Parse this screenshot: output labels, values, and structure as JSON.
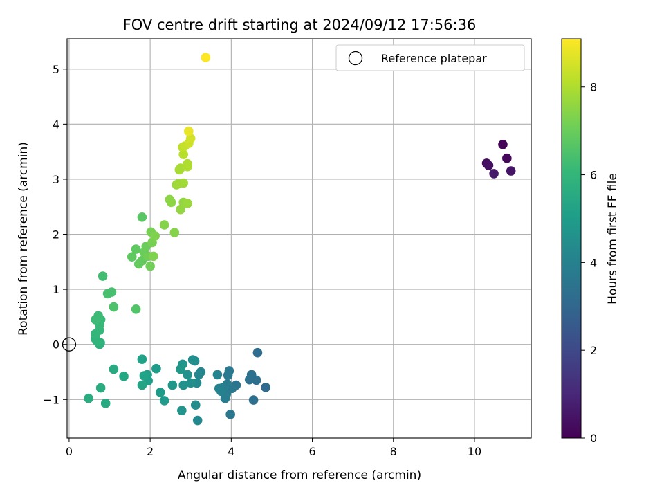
{
  "chart_data": {
    "type": "scatter",
    "title": "FOV centre drift starting at 2024/09/12 17:56:36",
    "xlabel": "Angular distance from reference (arcmin)",
    "ylabel": "Rotation from reference (arcmin)",
    "xlim": [
      -0.05,
      11.4
    ],
    "ylim": [
      -1.7,
      5.55
    ],
    "xticks": [
      0,
      2,
      4,
      6,
      8,
      10
    ],
    "yticks": [
      -1,
      0,
      1,
      2,
      3,
      4,
      5
    ],
    "grid": true,
    "legend": {
      "position": "top-right",
      "entries": [
        {
          "label": "Reference platepar",
          "marker": "open-circle"
        }
      ]
    },
    "reference_point": {
      "x": 0,
      "y": 0
    },
    "colorbar": {
      "label": "Hours from first FF file",
      "colormap": "viridis",
      "range": [
        0,
        9.1
      ],
      "ticks": [
        0,
        2,
        4,
        6,
        8
      ],
      "colors": [
        "#440154",
        "#482878",
        "#3e4a89",
        "#31688e",
        "#26828e",
        "#1f9e89",
        "#35b779",
        "#6ece58",
        "#b5de2b",
        "#fde725"
      ]
    },
    "points": [
      {
        "x": 10.7,
        "y": 3.63,
        "h": 0.1
      },
      {
        "x": 10.8,
        "y": 3.38,
        "h": 0.2
      },
      {
        "x": 10.3,
        "y": 3.29,
        "h": 0.3
      },
      {
        "x": 10.35,
        "y": 3.25,
        "h": 0.4
      },
      {
        "x": 10.9,
        "y": 3.15,
        "h": 0.5
      },
      {
        "x": 10.48,
        "y": 3.1,
        "h": 0.6
      },
      {
        "x": 4.85,
        "y": -0.78,
        "h": 3.1
      },
      {
        "x": 4.65,
        "y": -0.15,
        "h": 3.2
      },
      {
        "x": 4.62,
        "y": -0.65,
        "h": 3.3
      },
      {
        "x": 4.55,
        "y": -1.01,
        "h": 3.3
      },
      {
        "x": 4.5,
        "y": -0.55,
        "h": 3.4
      },
      {
        "x": 4.45,
        "y": -0.64,
        "h": 3.4
      },
      {
        "x": 4.12,
        "y": -0.74,
        "h": 3.5
      },
      {
        "x": 4.02,
        "y": -0.8,
        "h": 3.6
      },
      {
        "x": 3.98,
        "y": -1.27,
        "h": 3.6
      },
      {
        "x": 3.95,
        "y": -0.48,
        "h": 3.7
      },
      {
        "x": 3.92,
        "y": -0.56,
        "h": 3.7
      },
      {
        "x": 3.9,
        "y": -0.72,
        "h": 3.8
      },
      {
        "x": 3.88,
        "y": -0.9,
        "h": 3.8
      },
      {
        "x": 3.85,
        "y": -0.98,
        "h": 3.9
      },
      {
        "x": 3.8,
        "y": -0.78,
        "h": 3.9
      },
      {
        "x": 3.75,
        "y": -0.85,
        "h": 4.0
      },
      {
        "x": 3.7,
        "y": -0.8,
        "h": 4.0
      },
      {
        "x": 3.66,
        "y": -0.55,
        "h": 4.1
      },
      {
        "x": 3.25,
        "y": -0.5,
        "h": 4.2
      },
      {
        "x": 3.2,
        "y": -0.55,
        "h": 4.2
      },
      {
        "x": 3.17,
        "y": -1.38,
        "h": 4.3
      },
      {
        "x": 3.15,
        "y": -0.7,
        "h": 4.3
      },
      {
        "x": 3.12,
        "y": -1.1,
        "h": 4.4
      },
      {
        "x": 3.1,
        "y": -0.3,
        "h": 4.4
      },
      {
        "x": 3.05,
        "y": -0.28,
        "h": 4.5
      },
      {
        "x": 3.0,
        "y": -0.7,
        "h": 4.5
      },
      {
        "x": 2.92,
        "y": -0.55,
        "h": 4.6
      },
      {
        "x": 2.82,
        "y": -0.74,
        "h": 4.6
      },
      {
        "x": 2.8,
        "y": -0.36,
        "h": 4.7
      },
      {
        "x": 2.78,
        "y": -1.2,
        "h": 4.7
      },
      {
        "x": 2.75,
        "y": -0.45,
        "h": 4.8
      },
      {
        "x": 2.55,
        "y": -0.74,
        "h": 4.8
      },
      {
        "x": 2.35,
        "y": -1.02,
        "h": 4.9
      },
      {
        "x": 2.25,
        "y": -0.87,
        "h": 5.0
      },
      {
        "x": 2.15,
        "y": -0.44,
        "h": 5.0
      },
      {
        "x": 1.95,
        "y": -0.66,
        "h": 5.1
      },
      {
        "x": 1.93,
        "y": -0.55,
        "h": 5.1
      },
      {
        "x": 1.85,
        "y": -0.57,
        "h": 5.2
      },
      {
        "x": 1.8,
        "y": -0.27,
        "h": 5.2
      },
      {
        "x": 1.8,
        "y": -0.74,
        "h": 5.3
      },
      {
        "x": 1.35,
        "y": -0.58,
        "h": 5.4
      },
      {
        "x": 1.1,
        "y": -0.45,
        "h": 5.5
      },
      {
        "x": 0.9,
        "y": -1.07,
        "h": 5.5
      },
      {
        "x": 0.78,
        "y": -0.79,
        "h": 5.6
      },
      {
        "x": 0.48,
        "y": -0.98,
        "h": 5.6
      },
      {
        "x": 0.77,
        "y": 0.03,
        "h": 5.8
      },
      {
        "x": 0.75,
        "y": 0.0,
        "h": 5.8
      },
      {
        "x": 0.7,
        "y": 0.05,
        "h": 5.9
      },
      {
        "x": 0.65,
        "y": 0.1,
        "h": 5.9
      },
      {
        "x": 0.65,
        "y": 0.19,
        "h": 6.0
      },
      {
        "x": 0.75,
        "y": 0.26,
        "h": 6.0
      },
      {
        "x": 0.75,
        "y": 0.36,
        "h": 6.1
      },
      {
        "x": 0.78,
        "y": 0.45,
        "h": 6.1
      },
      {
        "x": 0.72,
        "y": 0.52,
        "h": 6.2
      },
      {
        "x": 0.65,
        "y": 0.45,
        "h": 6.2
      },
      {
        "x": 0.83,
        "y": 1.24,
        "h": 6.3
      },
      {
        "x": 0.95,
        "y": 0.92,
        "h": 6.4
      },
      {
        "x": 1.05,
        "y": 0.95,
        "h": 6.4
      },
      {
        "x": 1.1,
        "y": 0.68,
        "h": 6.5
      },
      {
        "x": 1.65,
        "y": 0.64,
        "h": 6.6
      },
      {
        "x": 1.8,
        "y": 2.31,
        "h": 6.7
      },
      {
        "x": 1.55,
        "y": 1.59,
        "h": 6.8
      },
      {
        "x": 1.65,
        "y": 1.73,
        "h": 6.8
      },
      {
        "x": 1.72,
        "y": 1.46,
        "h": 6.9
      },
      {
        "x": 1.8,
        "y": 1.52,
        "h": 6.9
      },
      {
        "x": 1.85,
        "y": 1.67,
        "h": 7.0
      },
      {
        "x": 1.9,
        "y": 1.78,
        "h": 7.0
      },
      {
        "x": 1.95,
        "y": 1.6,
        "h": 7.1
      },
      {
        "x": 2.0,
        "y": 1.42,
        "h": 7.1
      },
      {
        "x": 2.02,
        "y": 2.04,
        "h": 7.2
      },
      {
        "x": 2.05,
        "y": 1.85,
        "h": 7.2
      },
      {
        "x": 2.08,
        "y": 1.6,
        "h": 7.3
      },
      {
        "x": 2.12,
        "y": 1.97,
        "h": 7.3
      },
      {
        "x": 2.35,
        "y": 2.17,
        "h": 7.4
      },
      {
        "x": 2.6,
        "y": 2.03,
        "h": 7.4
      },
      {
        "x": 2.48,
        "y": 2.63,
        "h": 7.5
      },
      {
        "x": 2.52,
        "y": 2.58,
        "h": 7.5
      },
      {
        "x": 2.75,
        "y": 2.45,
        "h": 7.6
      },
      {
        "x": 2.82,
        "y": 2.58,
        "h": 7.6
      },
      {
        "x": 2.92,
        "y": 2.56,
        "h": 7.7
      },
      {
        "x": 2.65,
        "y": 2.9,
        "h": 7.7
      },
      {
        "x": 2.7,
        "y": 2.92,
        "h": 7.8
      },
      {
        "x": 2.82,
        "y": 2.93,
        "h": 7.8
      },
      {
        "x": 2.72,
        "y": 3.17,
        "h": 7.9
      },
      {
        "x": 2.75,
        "y": 3.2,
        "h": 7.9
      },
      {
        "x": 2.92,
        "y": 3.23,
        "h": 8.0
      },
      {
        "x": 2.92,
        "y": 3.28,
        "h": 8.0
      },
      {
        "x": 2.82,
        "y": 3.45,
        "h": 8.1
      },
      {
        "x": 2.8,
        "y": 3.58,
        "h": 8.2
      },
      {
        "x": 2.85,
        "y": 3.6,
        "h": 8.3
      },
      {
        "x": 2.95,
        "y": 3.65,
        "h": 8.4
      },
      {
        "x": 3.0,
        "y": 3.74,
        "h": 8.5
      },
      {
        "x": 2.95,
        "y": 3.87,
        "h": 8.8
      },
      {
        "x": 3.37,
        "y": 5.21,
        "h": 9.1
      }
    ]
  }
}
